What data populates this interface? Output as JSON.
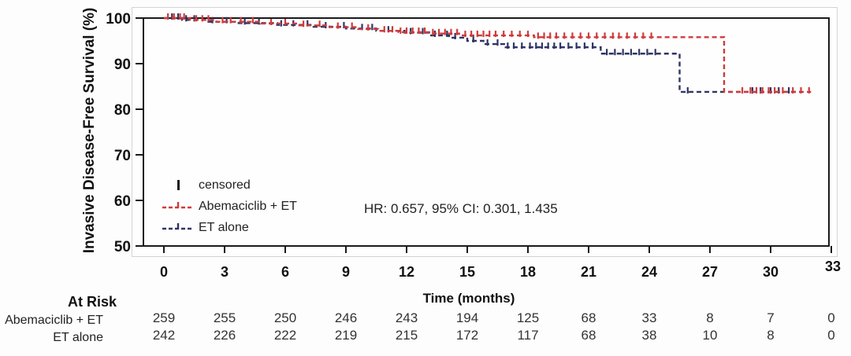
{
  "chart_data": {
    "type": "line",
    "subtype": "kaplan-meier-step-curves",
    "title": "",
    "xlabel": "Time (months)",
    "ylabel": "Invasive Disease-Free Survival (%)",
    "xlim": [
      0,
      33
    ],
    "ylim": [
      50,
      100
    ],
    "x_ticks": [
      0,
      3,
      6,
      9,
      12,
      15,
      18,
      21,
      24,
      27,
      30,
      33
    ],
    "y_ticks": [
      100,
      90,
      80,
      70,
      60,
      50
    ],
    "grid": "off",
    "legend_position": "inside-lower-left",
    "axis_color": "#1a1a1a",
    "annotation": "HR: 0.657, 95% CI: 0.301, 1.435",
    "censored_label": "censored",
    "series": [
      {
        "name": "Abemaciclib + ET",
        "color": "#cf3b3c",
        "steps": [
          [
            0,
            100
          ],
          [
            1.3,
            99.6
          ],
          [
            2.6,
            99.2
          ],
          [
            4.8,
            98.8
          ],
          [
            6.6,
            98.4
          ],
          [
            8.2,
            98.0
          ],
          [
            9.6,
            97.6
          ],
          [
            10.6,
            97.2
          ],
          [
            11.6,
            96.9
          ],
          [
            13.2,
            96.6
          ],
          [
            14.6,
            96.2
          ],
          [
            18.3,
            95.8
          ],
          [
            27.7,
            83.8
          ],
          [
            32.0,
            83.8
          ]
        ],
        "censor_months": [
          0.2,
          0.5,
          0.8,
          1.0,
          1.6,
          1.9,
          2.2,
          2.9,
          3.3,
          3.8,
          4.4,
          5.3,
          6.0,
          6.9,
          7.7,
          8.6,
          9.3,
          10.1,
          10.9,
          11.3,
          11.7,
          12.0,
          12.3,
          12.6,
          12.9,
          13.3,
          13.6,
          13.9,
          14.2,
          14.5,
          14.9,
          15.2,
          15.5,
          15.8,
          16.1,
          16.4,
          16.8,
          17.2,
          17.6,
          18.0,
          18.5,
          18.8,
          19.1,
          19.4,
          19.8,
          20.2,
          20.6,
          21.0,
          21.4,
          21.8,
          22.2,
          22.5,
          22.9,
          23.3,
          23.7,
          24.1,
          28.6,
          29.0,
          29.3,
          29.6,
          29.9,
          30.2,
          30.6,
          31.1,
          31.5,
          31.9
        ]
      },
      {
        "name": "ET alone",
        "color": "#2e3565",
        "steps": [
          [
            0,
            100
          ],
          [
            0.9,
            99.6
          ],
          [
            2.1,
            99.2
          ],
          [
            3.6,
            98.9
          ],
          [
            5.6,
            98.5
          ],
          [
            7.4,
            98.1
          ],
          [
            9.0,
            97.7
          ],
          [
            10.5,
            97.2
          ],
          [
            11.9,
            96.8
          ],
          [
            13.1,
            96.2
          ],
          [
            14.1,
            95.7
          ],
          [
            15.0,
            95.0
          ],
          [
            15.8,
            94.3
          ],
          [
            16.9,
            93.6
          ],
          [
            21.6,
            92.2
          ],
          [
            25.5,
            83.8
          ],
          [
            31.5,
            83.8
          ]
        ],
        "censor_months": [
          0.4,
          0.7,
          1.1,
          1.5,
          2.4,
          3.1,
          4.0,
          4.7,
          5.8,
          6.4,
          7.1,
          8.0,
          8.9,
          9.8,
          10.3,
          11.1,
          12.2,
          12.8,
          13.4,
          14.0,
          14.4,
          15.3,
          16.0,
          16.5,
          17.0,
          17.3,
          17.7,
          18.1,
          18.4,
          18.7,
          19.0,
          19.3,
          19.6,
          20.0,
          20.4,
          20.8,
          21.2,
          21.9,
          22.3,
          22.7,
          23.1,
          23.5,
          23.9,
          24.3,
          25.9,
          29.1,
          29.5,
          30.0,
          30.4,
          30.9
        ]
      }
    ],
    "at_risk": {
      "header": "At Risk",
      "rows": [
        {
          "label": "Abemaciclib + ET",
          "values": [
            259,
            255,
            250,
            246,
            243,
            194,
            125,
            68,
            33,
            8,
            7,
            0
          ]
        },
        {
          "label": "ET alone",
          "values": [
            242,
            226,
            222,
            219,
            215,
            172,
            117,
            68,
            38,
            10,
            8,
            0
          ]
        }
      ]
    }
  }
}
